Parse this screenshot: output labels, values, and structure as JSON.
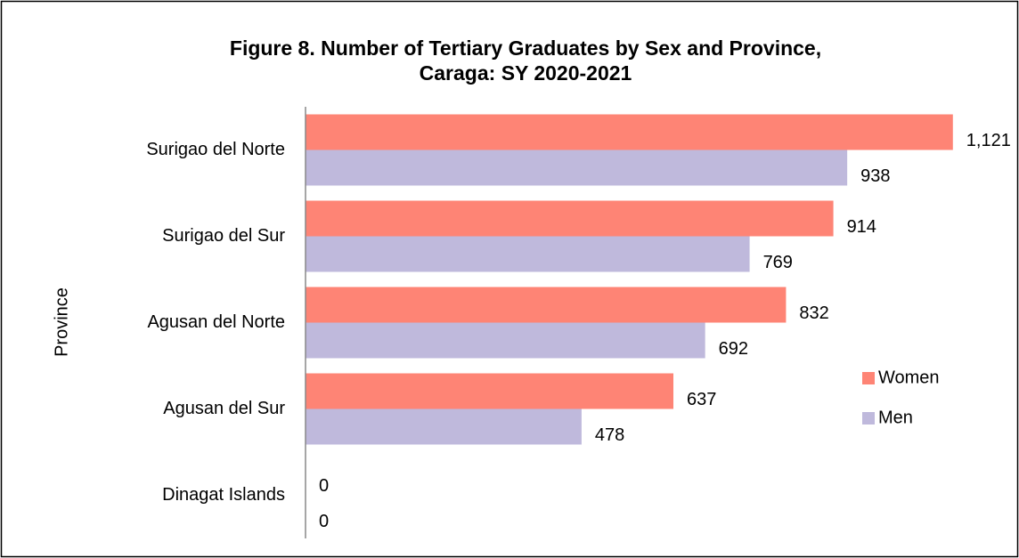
{
  "chart_data": {
    "type": "bar",
    "orientation": "horizontal",
    "title": [
      "Figure 8. Number of Tertiary Graduates by Sex and Province,",
      "Caraga: SY 2020-2021"
    ],
    "y_label": "Province",
    "categories": [
      "Surigao del Norte",
      "Surigao del Sur",
      "Agusan del Norte",
      "Agusan del Sur",
      "Dinagat Islands"
    ],
    "series": [
      {
        "name": "Women",
        "color": "#fe8475",
        "values": [
          1121,
          914,
          832,
          637,
          0
        ],
        "value_labels": [
          "1,121",
          "914",
          "832",
          "637",
          "0"
        ]
      },
      {
        "name": "Men",
        "color": "#bfb9dc",
        "values": [
          938,
          769,
          692,
          478,
          0
        ]
      }
    ],
    "xlim": [
      0,
      1200
    ],
    "legend": "right"
  }
}
